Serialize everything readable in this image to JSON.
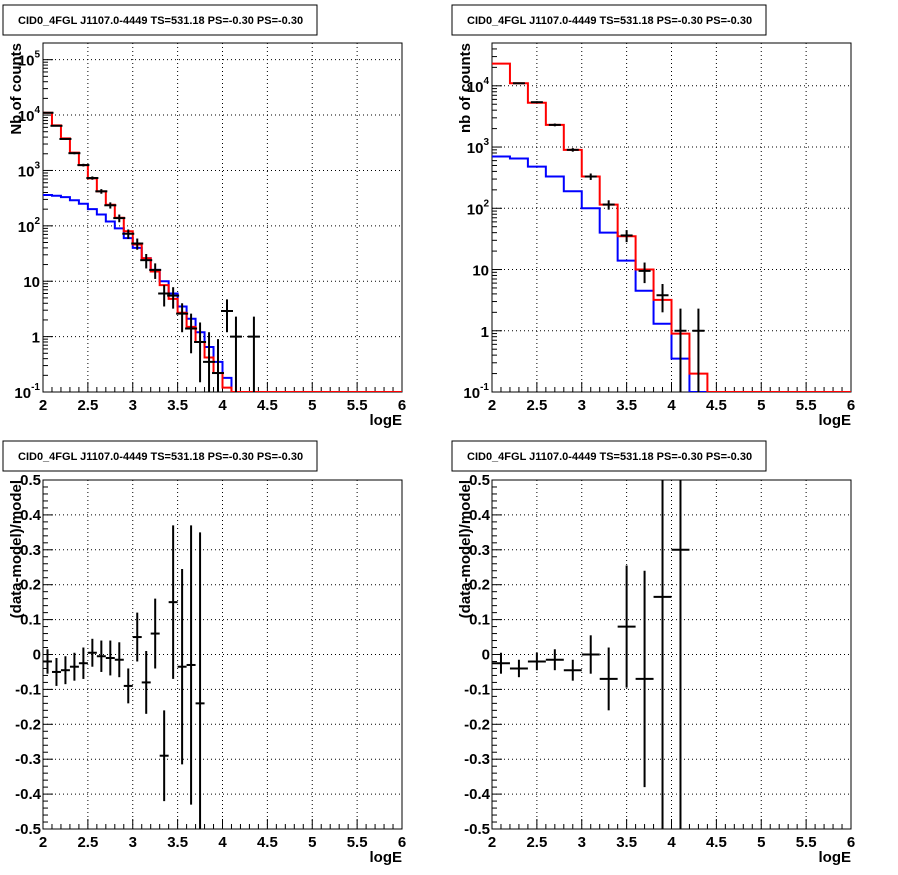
{
  "colors": {
    "data": "#000000",
    "total_model": "#ff0000",
    "source_model": "#0000ff",
    "grid": "#000000",
    "frame": "#000000"
  },
  "chart_data": [
    {
      "type": "line",
      "panel": "top-left",
      "title": "CID0_4FGL J1107.0-4449 TS=531.18 PS=-0.30 PS=-0.30",
      "xlabel": "logE",
      "ylabel": "Nb of counts",
      "xlim": [
        2,
        6
      ],
      "ylim": [
        0.1,
        200000
      ],
      "y_log": true,
      "grid": true,
      "x_ticks": [
        "2",
        "2.5",
        "3",
        "3.5",
        "4",
        "4.5",
        "5",
        "5.5",
        "6"
      ],
      "y_ticks": [
        {
          "v": 0.1,
          "b": "10",
          "e": "-1"
        },
        {
          "v": 1,
          "b": "1",
          "e": ""
        },
        {
          "v": 10,
          "b": "10",
          "e": ""
        },
        {
          "v": 100,
          "b": "10",
          "e": "2"
        },
        {
          "v": 1000,
          "b": "10",
          "e": "3"
        },
        {
          "v": 10000,
          "b": "10",
          "e": "4"
        },
        {
          "v": 100000,
          "b": "10",
          "e": "5"
        }
      ],
      "bin_edges": [
        2.0,
        2.1,
        2.2,
        2.3,
        2.4,
        2.5,
        2.6,
        2.7,
        2.8,
        2.9,
        3.0,
        3.1,
        3.2,
        3.3,
        3.4,
        3.5,
        3.6,
        3.7,
        3.8,
        3.9,
        4.0,
        4.1,
        4.2,
        4.3,
        4.4,
        4.5,
        4.6,
        4.7,
        4.8,
        4.9,
        5.0,
        5.1,
        5.2,
        5.3,
        5.4,
        5.5,
        5.6,
        5.7,
        5.8,
        5.9,
        6.0
      ],
      "series": [
        {
          "role": "total_model",
          "values": [
            11000,
            6500,
            3800,
            2100,
            1250,
            720,
            420,
            240,
            140,
            80,
            46,
            26,
            15,
            8.5,
            4.8,
            2.7,
            1.5,
            0.8,
            0.42,
            0.22,
            0.12,
            0.1,
            0.1,
            0.1,
            0.1,
            0.1,
            0.1,
            0.1,
            0.1,
            0.1,
            0.1,
            0.1,
            0.1,
            0.1,
            0.1,
            0.1,
            0.1,
            0.1,
            0.1,
            0.1
          ]
        },
        {
          "role": "source_model",
          "values": [
            360,
            350,
            330,
            290,
            250,
            200,
            160,
            120,
            90,
            60,
            40,
            26,
            16,
            10,
            6,
            3.5,
            2.1,
            1.2,
            0.65,
            0.35,
            0.18,
            0.1,
            0.1,
            0.1,
            0.1,
            0.1,
            0.1,
            0.1,
            0.1,
            0.1,
            0.1,
            0.1,
            0.1,
            0.1,
            0.1,
            0.1,
            0.1,
            0.1,
            0.1,
            0.1
          ]
        }
      ],
      "points": [
        {
          "x": 2.05,
          "y": 11000,
          "lo": 10800,
          "hi": 11200
        },
        {
          "x": 2.15,
          "y": 6400,
          "lo": 6250,
          "hi": 6550
        },
        {
          "x": 2.25,
          "y": 3700,
          "lo": 3600,
          "hi": 3800
        },
        {
          "x": 2.35,
          "y": 2050,
          "lo": 1960,
          "hi": 2140
        },
        {
          "x": 2.45,
          "y": 1250,
          "lo": 1180,
          "hi": 1320
        },
        {
          "x": 2.55,
          "y": 730,
          "lo": 680,
          "hi": 780
        },
        {
          "x": 2.65,
          "y": 420,
          "lo": 380,
          "hi": 460
        },
        {
          "x": 2.75,
          "y": 235,
          "lo": 205,
          "hi": 265
        },
        {
          "x": 2.85,
          "y": 138,
          "lo": 116,
          "hi": 160
        },
        {
          "x": 2.95,
          "y": 72,
          "lo": 58,
          "hi": 86
        },
        {
          "x": 3.05,
          "y": 48,
          "lo": 37,
          "hi": 59
        },
        {
          "x": 3.15,
          "y": 24,
          "lo": 17,
          "hi": 31
        },
        {
          "x": 3.25,
          "y": 16,
          "lo": 11,
          "hi": 21
        },
        {
          "x": 3.35,
          "y": 6,
          "lo": 3.5,
          "hi": 8.5
        },
        {
          "x": 3.45,
          "y": 5.5,
          "lo": 3.2,
          "hi": 7.8
        },
        {
          "x": 3.55,
          "y": 2.6,
          "lo": 1.2,
          "hi": 4
        },
        {
          "x": 3.65,
          "y": 1.4,
          "lo": 0.5,
          "hi": 2.6
        },
        {
          "x": 3.75,
          "y": 0.8,
          "lo": 0.15,
          "hi": 1.8
        },
        {
          "x": 3.85,
          "y": 0.35,
          "lo": 0.1,
          "hi": 1.2
        },
        {
          "x": 3.95,
          "y": 0.22,
          "lo": 0.1,
          "hi": 0.9
        },
        {
          "x": 4.05,
          "y": 2.9,
          "lo": 1.2,
          "hi": 4.7
        },
        {
          "x": 4.15,
          "y": 1,
          "lo": 0.1,
          "hi": 2.3
        },
        {
          "x": 4.35,
          "y": 1,
          "lo": 0.1,
          "hi": 2.3
        }
      ]
    },
    {
      "type": "line",
      "panel": "top-right",
      "title": "CID0_4FGL J1107.0-4449 TS=531.18 PS=-0.30 PS=-0.30",
      "xlabel": "logE",
      "ylabel": "nb of counts",
      "xlim": [
        2,
        6
      ],
      "ylim": [
        0.1,
        50000
      ],
      "y_log": true,
      "grid": true,
      "x_ticks": [
        "2",
        "2.5",
        "3",
        "3.5",
        "4",
        "4.5",
        "5",
        "5.5",
        "6"
      ],
      "y_ticks": [
        {
          "v": 0.1,
          "b": "10",
          "e": "-1"
        },
        {
          "v": 1,
          "b": "1",
          "e": ""
        },
        {
          "v": 10,
          "b": "10",
          "e": ""
        },
        {
          "v": 100,
          "b": "10",
          "e": "2"
        },
        {
          "v": 1000,
          "b": "10",
          "e": "3"
        },
        {
          "v": 10000,
          "b": "10",
          "e": "4"
        }
      ],
      "bin_edges": [
        2.0,
        2.2,
        2.4,
        2.6,
        2.8,
        3.0,
        3.2,
        3.4,
        3.6,
        3.8,
        4.0,
        4.2,
        4.4,
        4.6,
        4.8,
        5.0,
        5.2,
        5.4,
        5.6,
        5.8,
        6.0
      ],
      "series": [
        {
          "role": "total_model",
          "values": [
            23000,
            11000,
            5300,
            2300,
            900,
            330,
            115,
            35,
            10,
            3.2,
            0.9,
            0.2,
            0.1,
            0.1,
            0.1,
            0.1,
            0.1,
            0.1,
            0.1,
            0.1
          ]
        },
        {
          "role": "source_model",
          "values": [
            700,
            650,
            480,
            330,
            190,
            100,
            40,
            14,
            4.5,
            1.3,
            0.35,
            0.1,
            0.1,
            0.1,
            0.1,
            0.1,
            0.1,
            0.1,
            0.1,
            0.1
          ]
        }
      ],
      "points": [
        {
          "x": 2.3,
          "y": 11000,
          "lo": 10750,
          "hi": 11250
        },
        {
          "x": 2.5,
          "y": 5400,
          "lo": 5220,
          "hi": 5580
        },
        {
          "x": 2.7,
          "y": 2300,
          "lo": 2180,
          "hi": 2420
        },
        {
          "x": 2.9,
          "y": 900,
          "lo": 840,
          "hi": 960
        },
        {
          "x": 3.1,
          "y": 330,
          "lo": 290,
          "hi": 370
        },
        {
          "x": 3.3,
          "y": 115,
          "lo": 95,
          "hi": 135
        },
        {
          "x": 3.5,
          "y": 36,
          "lo": 28,
          "hi": 44
        },
        {
          "x": 3.7,
          "y": 9.5,
          "lo": 6,
          "hi": 13
        },
        {
          "x": 3.9,
          "y": 3.8,
          "lo": 2,
          "hi": 5.8
        },
        {
          "x": 4.1,
          "y": 1,
          "lo": 0.1,
          "hi": 2.3
        },
        {
          "x": 4.3,
          "y": 1,
          "lo": 0.1,
          "hi": 2.3
        }
      ]
    },
    {
      "type": "scatter",
      "panel": "bottom-left",
      "title": "CID0_4FGL J1107.0-4449 TS=531.18 PS=-0.30 PS=-0.30",
      "xlabel": "logE",
      "ylabel": "(data-model)/model",
      "xlim": [
        2,
        6
      ],
      "ylim": [
        -0.5,
        0.5
      ],
      "grid": true,
      "x_ticks": [
        "2",
        "2.5",
        "3",
        "3.5",
        "4",
        "4.5",
        "5",
        "5.5",
        "6"
      ],
      "y_ticks": [
        "-0.5",
        "-0.4",
        "-0.3",
        "-0.2",
        "-0.1",
        "0",
        "0.1",
        "0.2",
        "0.3",
        "0.4",
        "0.5"
      ],
      "points": [
        {
          "x": 2.05,
          "xerr": 0.05,
          "y": -0.02,
          "err": 0.035
        },
        {
          "x": 2.15,
          "xerr": 0.05,
          "y": -0.05,
          "err": 0.04
        },
        {
          "x": 2.25,
          "xerr": 0.05,
          "y": -0.045,
          "err": 0.04
        },
        {
          "x": 2.35,
          "xerr": 0.05,
          "y": -0.035,
          "err": 0.04
        },
        {
          "x": 2.45,
          "xerr": 0.05,
          "y": -0.025,
          "err": 0.045
        },
        {
          "x": 2.55,
          "xerr": 0.05,
          "y": 0.005,
          "err": 0.04
        },
        {
          "x": 2.65,
          "xerr": 0.05,
          "y": -0.005,
          "err": 0.045
        },
        {
          "x": 2.75,
          "xerr": 0.05,
          "y": -0.01,
          "err": 0.05
        },
        {
          "x": 2.85,
          "xerr": 0.05,
          "y": -0.015,
          "err": 0.05
        },
        {
          "x": 2.95,
          "xerr": 0.05,
          "y": -0.09,
          "err": 0.05
        },
        {
          "x": 3.05,
          "xerr": 0.05,
          "y": 0.05,
          "err": 0.07
        },
        {
          "x": 3.15,
          "xerr": 0.05,
          "y": -0.08,
          "err": 0.09
        },
        {
          "x": 3.25,
          "xerr": 0.05,
          "y": 0.06,
          "err": 0.1
        },
        {
          "x": 3.35,
          "xerr": 0.05,
          "y": -0.29,
          "err": 0.13
        },
        {
          "x": 3.45,
          "xerr": 0.05,
          "y": 0.15,
          "err": 0.22
        },
        {
          "x": 3.55,
          "xerr": 0.05,
          "y": -0.035,
          "err": 0.28
        },
        {
          "x": 3.65,
          "xerr": 0.05,
          "y": -0.03,
          "err": 0.4
        },
        {
          "x": 3.75,
          "xerr": 0.05,
          "y": -0.14,
          "err": 0.49
        }
      ]
    },
    {
      "type": "scatter",
      "panel": "bottom-right",
      "title": "CID0_4FGL J1107.0-4449 TS=531.18 PS=-0.30 PS=-0.30",
      "xlabel": "logE",
      "ylabel": "(data-model)/model",
      "xlim": [
        2,
        6
      ],
      "ylim": [
        -0.5,
        0.5
      ],
      "grid": true,
      "x_ticks": [
        "2",
        "2.5",
        "3",
        "3.5",
        "4",
        "4.5",
        "5",
        "5.5",
        "6"
      ],
      "y_ticks": [
        "-0.5",
        "-0.4",
        "-0.3",
        "-0.2",
        "-0.1",
        "0",
        "0.1",
        "0.2",
        "0.3",
        "0.4",
        "0.5"
      ],
      "points": [
        {
          "x": 2.1,
          "xerr": 0.1,
          "y": -0.025,
          "err": 0.03
        },
        {
          "x": 2.3,
          "xerr": 0.1,
          "y": -0.04,
          "err": 0.025
        },
        {
          "x": 2.5,
          "xerr": 0.1,
          "y": -0.02,
          "err": 0.025
        },
        {
          "x": 2.7,
          "xerr": 0.1,
          "y": -0.015,
          "err": 0.03
        },
        {
          "x": 2.9,
          "xerr": 0.1,
          "y": -0.045,
          "err": 0.03
        },
        {
          "x": 3.1,
          "xerr": 0.1,
          "y": 0.0,
          "err": 0.055
        },
        {
          "x": 3.3,
          "xerr": 0.1,
          "y": -0.07,
          "err": 0.09
        },
        {
          "x": 3.5,
          "xerr": 0.1,
          "y": 0.08,
          "err": 0.175
        },
        {
          "x": 3.7,
          "xerr": 0.1,
          "y": -0.07,
          "err": 0.31
        },
        {
          "x": 3.9,
          "xerr": 0.1,
          "y": 0.165,
          "err": 0.67
        },
        {
          "x": 4.1,
          "xerr": 0.1,
          "y": 0.3,
          "err": 0.8
        }
      ]
    }
  ]
}
